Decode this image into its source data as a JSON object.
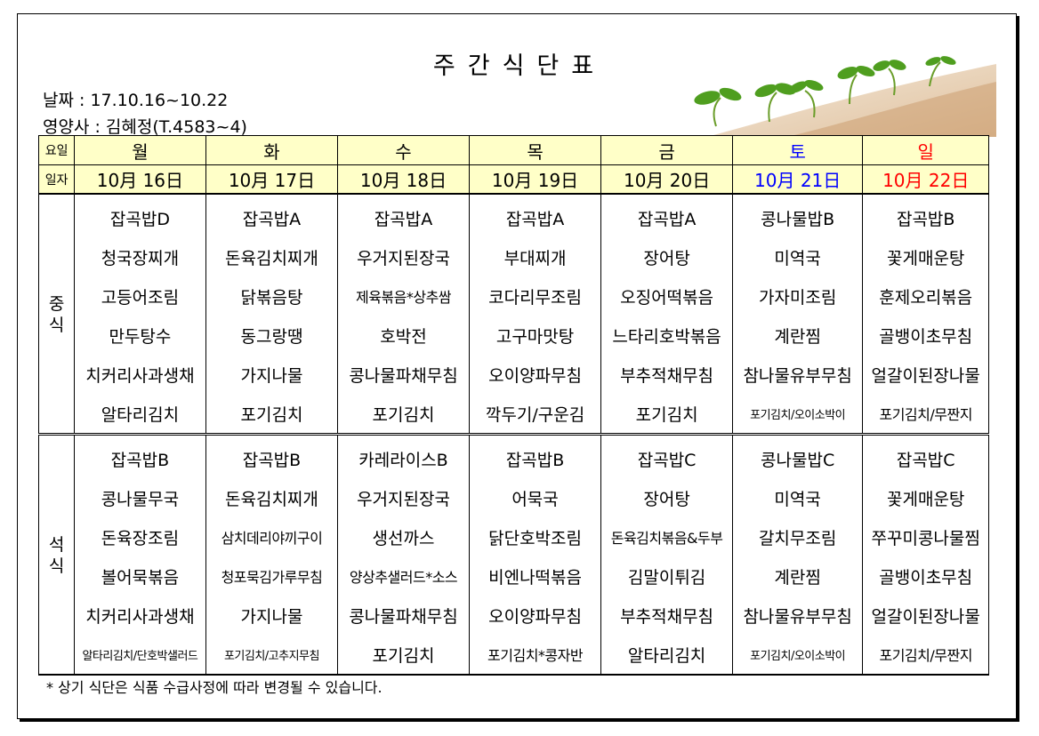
{
  "title": "주간식단표",
  "date_line": "날짜 : 17.10.16~10.22",
  "dietitian_line": "영양사 : 김혜정(T.4583~4)",
  "header": {
    "day_label": "요일",
    "date_label": "일자",
    "days": [
      "월",
      "화",
      "수",
      "목",
      "금",
      "토",
      "일"
    ],
    "dates": [
      "10月 16日",
      "10月 17日",
      "10月 18日",
      "10月 19日",
      "10月 20日",
      "10月 21日",
      "10月 22日"
    ]
  },
  "lunch": {
    "label": "중\n식",
    "rows": [
      [
        "잡곡밥D",
        "잡곡밥A",
        "잡곡밥A",
        "잡곡밥A",
        "잡곡밥A",
        "콩나물밥B",
        "잡곡밥B"
      ],
      [
        "청국장찌개",
        "돈육김치찌개",
        "우거지된장국",
        "부대찌개",
        "장어탕",
        "미역국",
        "꽃게매운탕"
      ],
      [
        "고등어조림",
        "닭볶음탕",
        "제육볶음*상추쌈",
        "코다리무조림",
        "오징어떡볶음",
        "가자미조림",
        "훈제오리볶음"
      ],
      [
        "만두탕수",
        "동그랑땡",
        "호박전",
        "고구마맛탕",
        "느타리호박볶음",
        "계란찜",
        "골뱅이초무침"
      ],
      [
        "치커리사과생채",
        "가지나물",
        "콩나물파채무침",
        "오이양파무침",
        "부추적채무침",
        "참나물유부무침",
        "얼갈이된장나물"
      ],
      [
        "알타리김치",
        "포기김치",
        "포기김치",
        "깍두기/구운김",
        "포기김치",
        "포기김치/오이소박이",
        "포기김치/무짠지"
      ]
    ]
  },
  "dinner": {
    "label": "석\n식",
    "rows": [
      [
        "잡곡밥B",
        "잡곡밥B",
        "카레라이스B",
        "잡곡밥B",
        "잡곡밥C",
        "콩나물밥C",
        "잡곡밥C"
      ],
      [
        "콩나물무국",
        "돈육김치찌개",
        "우거지된장국",
        "어묵국",
        "장어탕",
        "미역국",
        "꽃게매운탕"
      ],
      [
        "돈육장조림",
        "삼치데리야끼구이",
        "생선까스",
        "닭단호박조림",
        "돈육김치볶음&두부",
        "갈치무조림",
        "쭈꾸미콩나물찜"
      ],
      [
        "볼어묵볶음",
        "청포묵김가루무침",
        "양상추샐러드*소스",
        "비엔나떡볶음",
        "김말이튀김",
        "계란찜",
        "골뱅이초무침"
      ],
      [
        "치커리사과생채",
        "가지나물",
        "콩나물파채무침",
        "오이양파무침",
        "부추적채무침",
        "참나물유부무침",
        "얼갈이된장나물"
      ],
      [
        "알타리김치/단호박샐러드",
        "포기김치/고추지무침",
        "포기김치",
        "포기김치*콩자반",
        "알타리김치",
        "포기김치/오이소박이",
        "포기김치/무짠지"
      ]
    ]
  },
  "note": "* 상기 식단은 식품 수급사정에 따라 변경될 수 있습니다.",
  "colors": {
    "header_bg": "#ffffc8",
    "saturday": "#0000ff",
    "sunday": "#ff0000"
  },
  "decor": "sprouts-image"
}
